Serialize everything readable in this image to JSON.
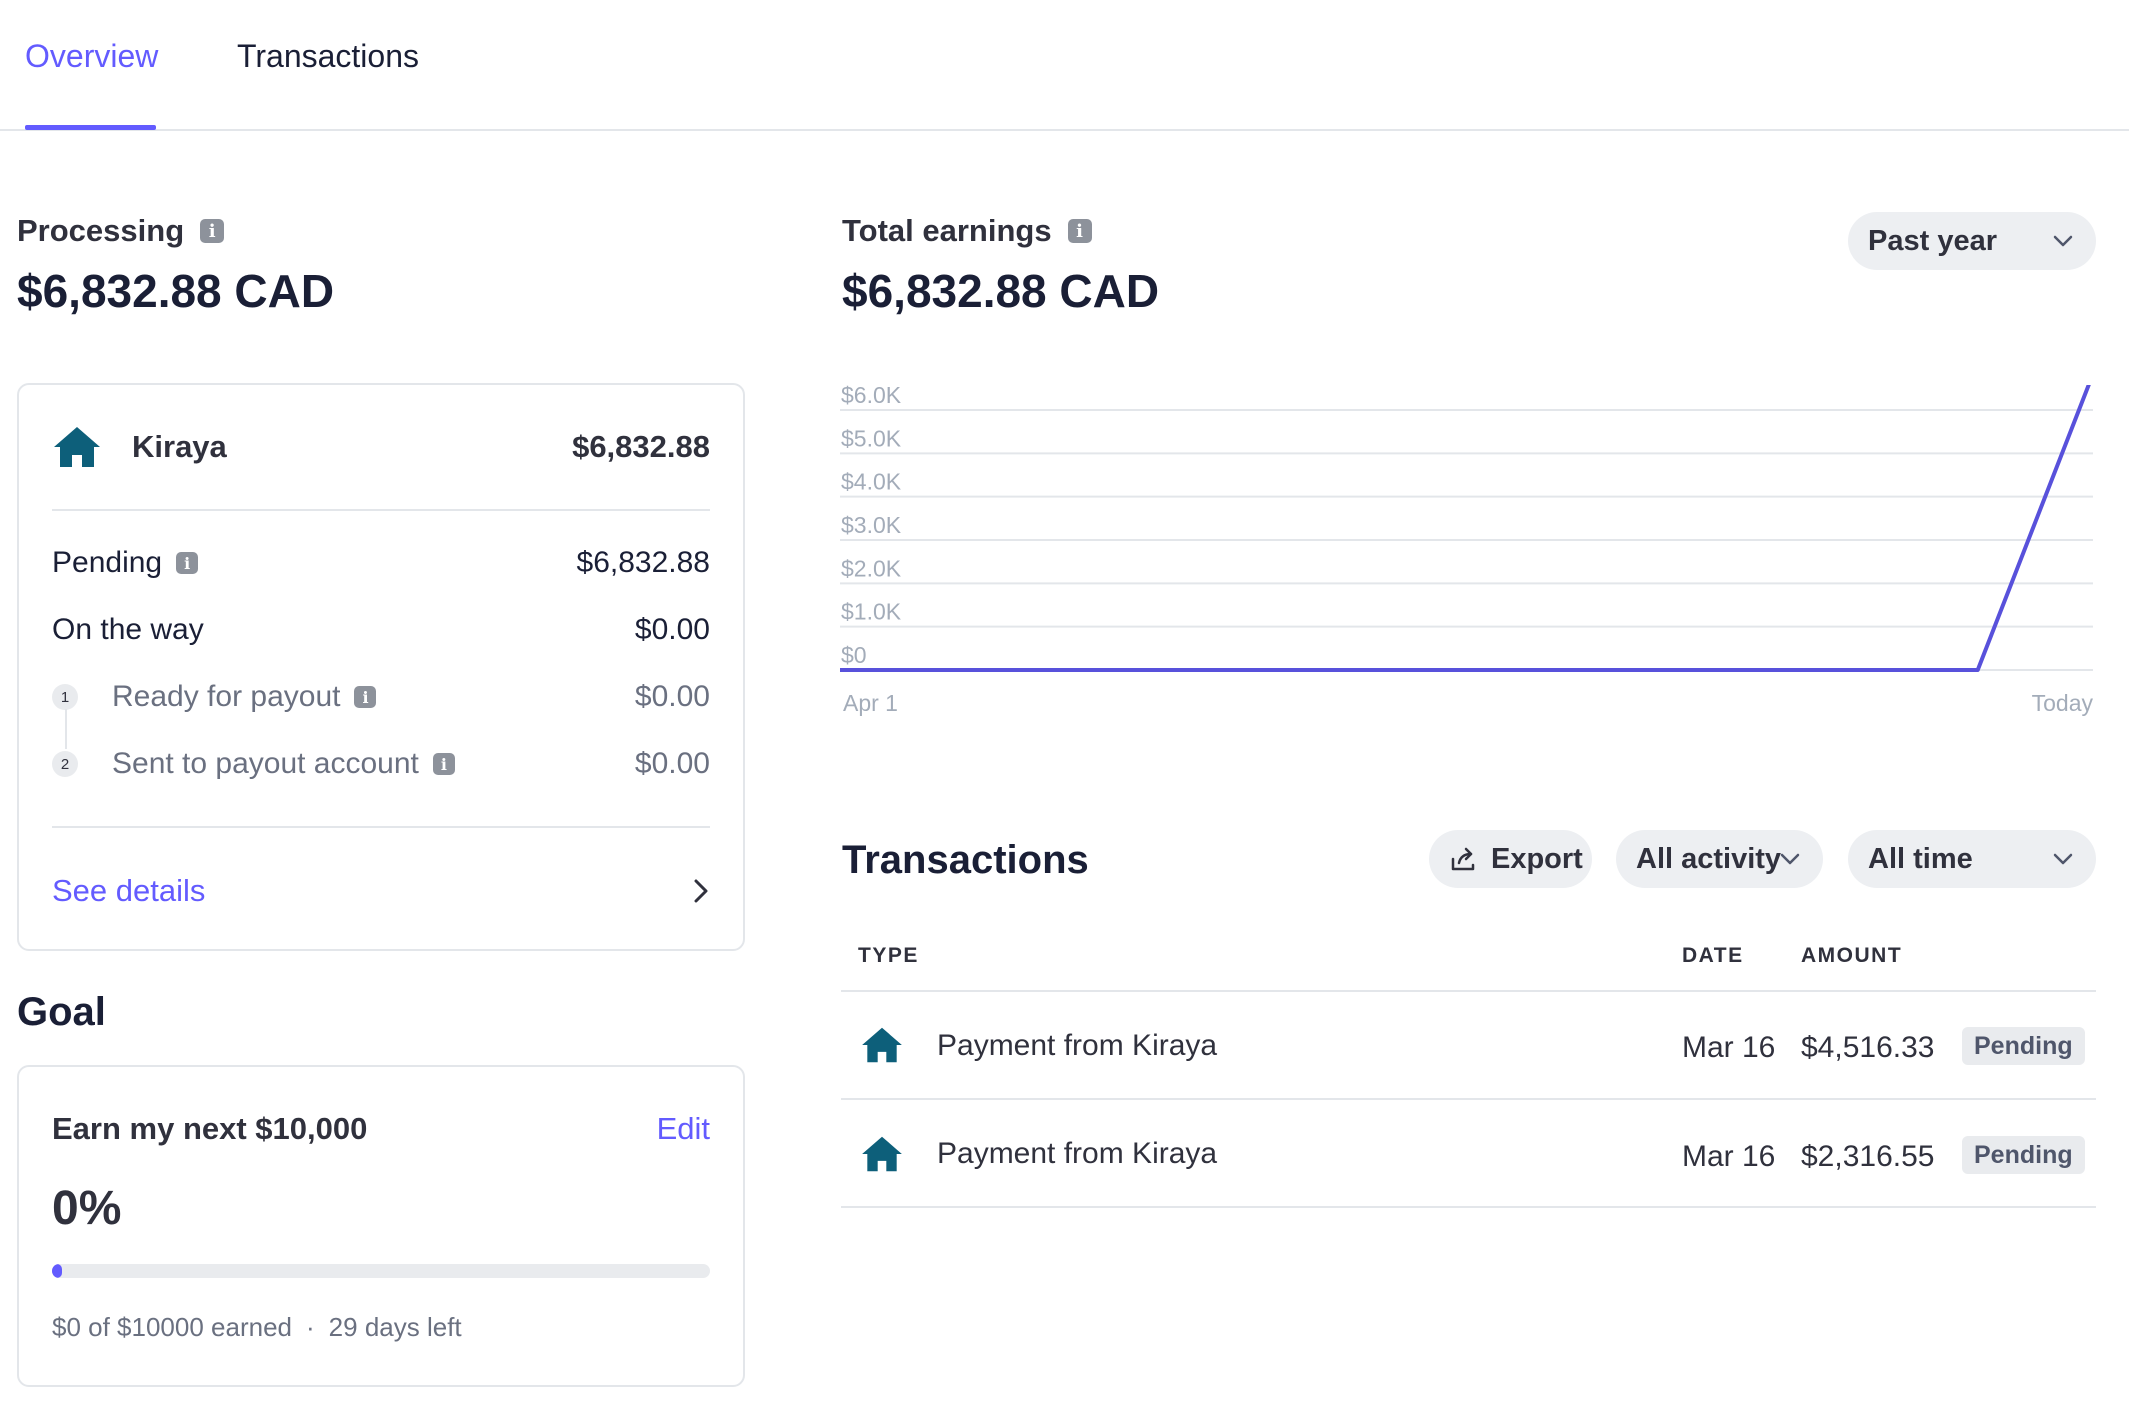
{
  "tabs": [
    {
      "label": "Overview",
      "active": true
    },
    {
      "label": "Transactions",
      "active": false
    }
  ],
  "processing": {
    "label": "Processing",
    "amount": "$6,832.88 CAD"
  },
  "balance_card": {
    "merchant": {
      "name": "Kiraya",
      "amount": "$6,832.88",
      "icon": "house-icon"
    },
    "pending": {
      "label": "Pending",
      "amount": "$6,832.88"
    },
    "on_the_way": {
      "label": "On the way",
      "amount": "$0.00"
    },
    "steps": [
      {
        "number": "1",
        "label": "Ready for payout",
        "amount": "$0.00"
      },
      {
        "number": "2",
        "label": "Sent to payout account",
        "amount": "$0.00"
      }
    ],
    "see_details": "See details"
  },
  "goal": {
    "section_title": "Goal",
    "title": "Earn my next $10,000",
    "edit_label": "Edit",
    "percent": "0%",
    "progress": 0,
    "earned_text": "$0 of $10000 earned",
    "separator": "·",
    "days_left": "29 days left"
  },
  "total_earnings": {
    "label": "Total earnings",
    "amount": "$6,832.88 CAD",
    "range_select": "Past year"
  },
  "chart_data": {
    "type": "line",
    "x": [
      "Apr 1",
      "Today"
    ],
    "x_tick_labels": [
      "Apr 1",
      "Today"
    ],
    "y_tick_labels": [
      "$6.0K",
      "$5.0K",
      "$4.0K",
      "$3.0K",
      "$2.0K",
      "$1.0K",
      "$0"
    ],
    "ylim": [
      0,
      6000
    ],
    "series": [
      {
        "points": [
          [
            0,
            0
          ],
          [
            0.908,
            0
          ],
          [
            1.0,
            6832.88
          ]
        ]
      }
    ],
    "grid": true,
    "line_color": "#5851db"
  },
  "transactions": {
    "title": "Transactions",
    "export_label": "Export",
    "activity_filter": "All activity",
    "time_filter": "All time",
    "columns": {
      "type": "TYPE",
      "date": "DATE",
      "amount": "AMOUNT"
    },
    "rows": [
      {
        "description": "Payment from Kiraya",
        "date": "Mar 16",
        "amount": "$4,516.33",
        "status": "Pending"
      },
      {
        "description": "Payment from Kiraya",
        "date": "Mar 16",
        "amount": "$2,316.55",
        "status": "Pending"
      }
    ]
  },
  "colors": {
    "accent": "#635bff",
    "house_icon": "#0d5f7a",
    "text_primary": "#1a1f36",
    "text_muted": "#6a7080"
  }
}
